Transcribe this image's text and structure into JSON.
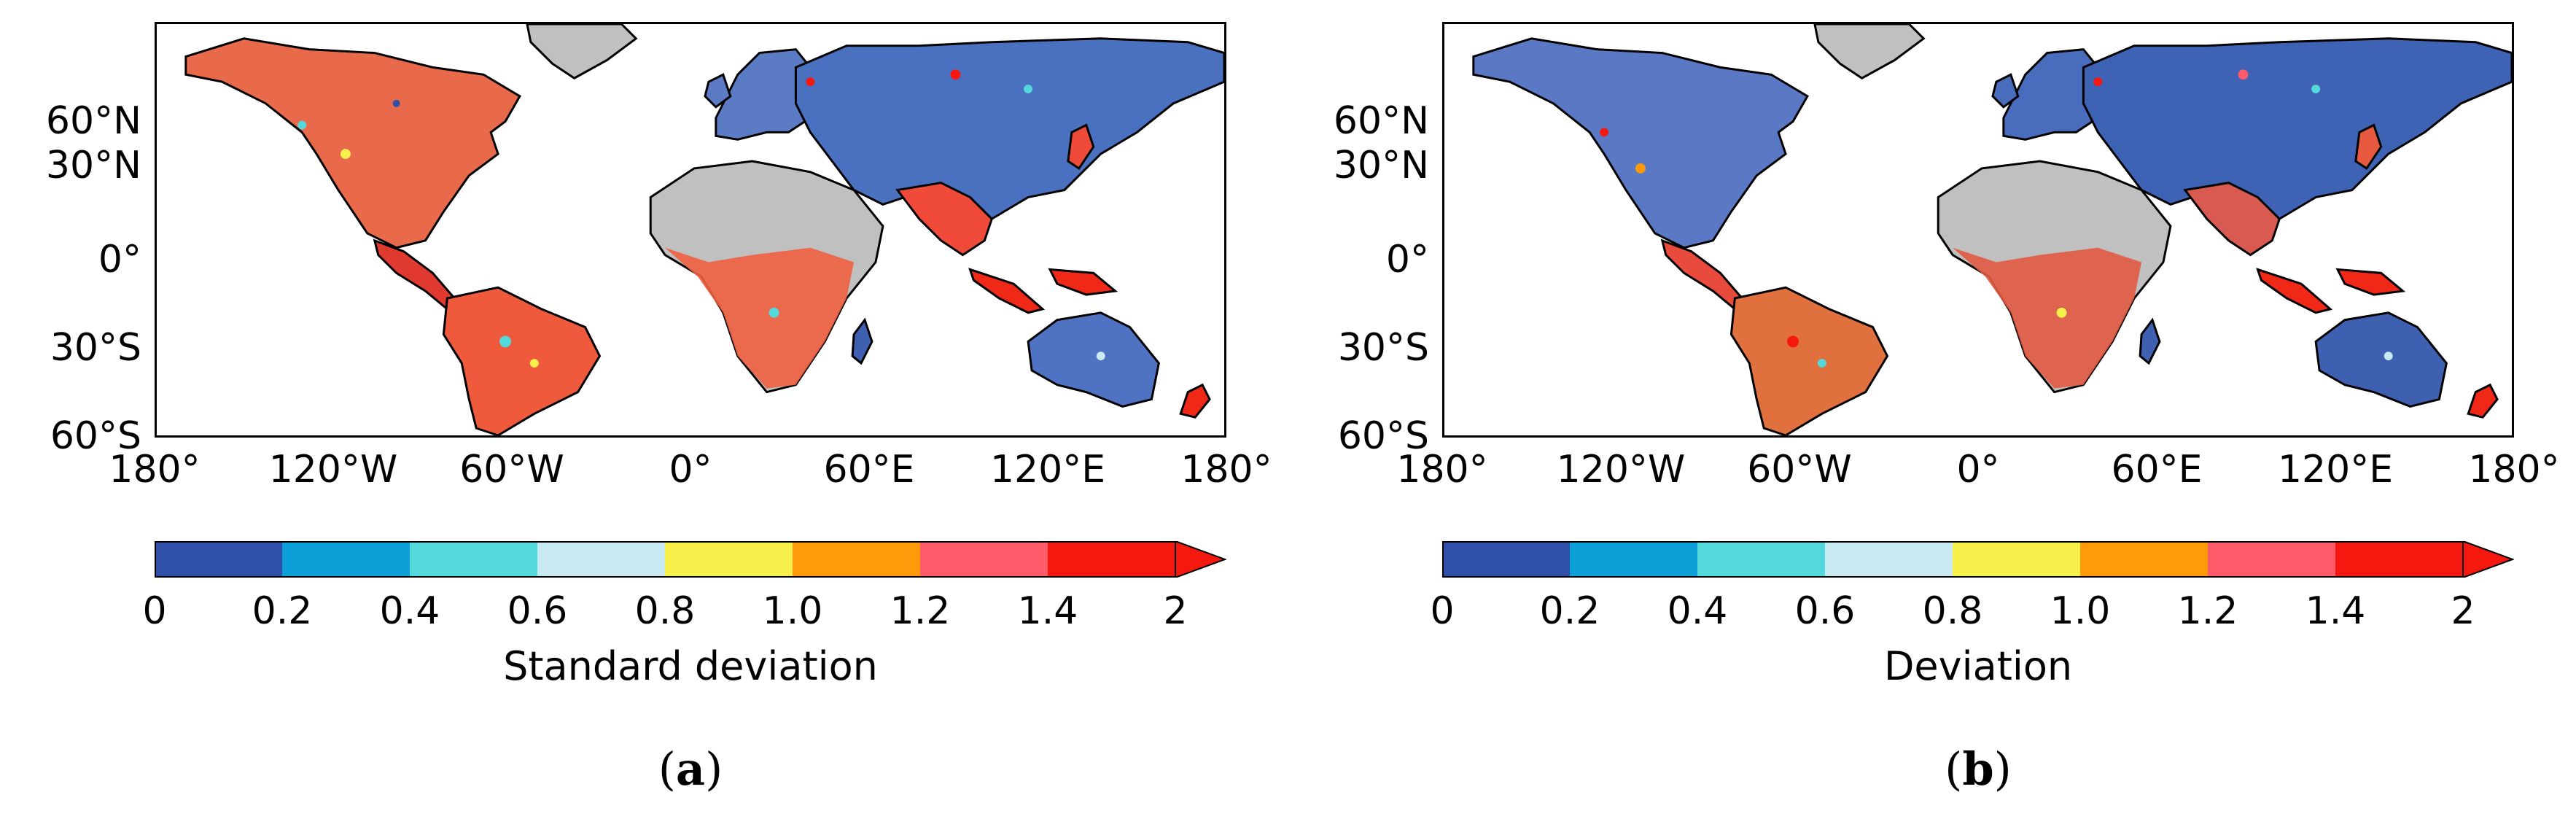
{
  "lat_ticks": [
    "60°N",
    "30°N",
    "0°",
    "30°S",
    "60°S"
  ],
  "lon_ticks": [
    "180°",
    "120°W",
    "60°W",
    "0°",
    "60°E",
    "120°E",
    "180°"
  ],
  "colorbar": {
    "colors": [
      "#2f4fa8",
      "#0c9fd8",
      "#53d8dc",
      "#c9eaf1",
      "#f7f04a",
      "#ff9a0a",
      "#fd5a6a",
      "#f5180e"
    ],
    "ticks": [
      "0",
      "0.2",
      "0.4",
      "0.6",
      "0.8",
      "1.0",
      "1.2",
      "1.4",
      "2"
    ],
    "extend": "max"
  },
  "colors": {
    "land_no_data": "#c0c0c0",
    "coastline": "#000000",
    "frame": "#000000"
  },
  "panels": [
    {
      "colorbar_label": "Standard deviation",
      "panel_letter": "a"
    },
    {
      "colorbar_label": "Deviation",
      "panel_letter": "b"
    }
  ]
}
